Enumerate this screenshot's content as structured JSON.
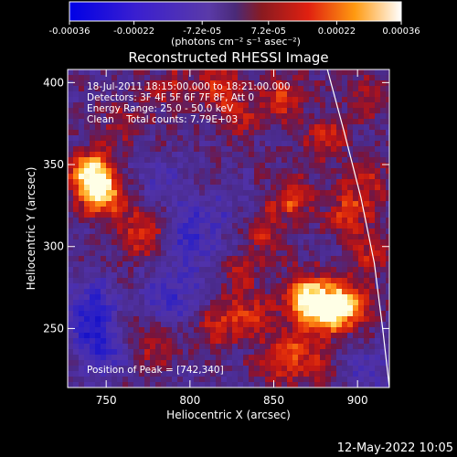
{
  "chart_data": {
    "type": "heatmap",
    "title": "Reconstructed RHESSI Image",
    "xlabel": "Heliocentric X (arcsec)",
    "ylabel": "Heliocentric Y (arcsec)",
    "xlim": [
      727,
      919
    ],
    "ylim": [
      214,
      408
    ],
    "x_ticks": [
      750,
      800,
      850,
      900
    ],
    "y_ticks": [
      250,
      300,
      350,
      400
    ],
    "x_tick_labels": [
      "750",
      "800",
      "850",
      "900"
    ],
    "y_tick_labels": [
      "250",
      "300",
      "350",
      "400"
    ],
    "colorbar": {
      "range": [
        -0.00036,
        0.00036
      ],
      "ticks": [
        -0.00036,
        -0.00022,
        -7.2e-05,
        7.2e-05,
        0.00022,
        0.00036
      ],
      "tick_labels": [
        "-0.00036",
        "-0.00022",
        "-7.2e-05",
        "7.2e-05",
        "0.00022",
        "0.00036"
      ],
      "unit_label": "(photons cm⁻² s⁻¹ asec⁻²)"
    },
    "annotations": [
      "18-Jul-2011 18:15:00.000 to 18:21:00.000",
      "Detectors: 3F 4F 5F 6F 7F 8F, Att 0",
      "Energy Range: 25.0 - 50.0 keV",
      "Clean    Total counts: 7.79E+03"
    ],
    "peak_label": "Position of Peak = [742,340]",
    "peak_position": [
      742,
      340
    ],
    "hot_regions": [
      {
        "x": 742,
        "y": 345,
        "level": 1.0
      },
      {
        "x": 748,
        "y": 330,
        "level": 0.75
      },
      {
        "x": 772,
        "y": 308,
        "level": 0.55
      },
      {
        "x": 758,
        "y": 248,
        "level": 0.5
      },
      {
        "x": 780,
        "y": 238,
        "level": 0.35
      },
      {
        "x": 815,
        "y": 398,
        "level": 0.45
      },
      {
        "x": 830,
        "y": 380,
        "level": 0.35
      },
      {
        "x": 855,
        "y": 390,
        "level": 0.45
      },
      {
        "x": 880,
        "y": 365,
        "level": 0.4
      },
      {
        "x": 862,
        "y": 330,
        "level": 0.5
      },
      {
        "x": 895,
        "y": 320,
        "level": 0.45
      },
      {
        "x": 905,
        "y": 340,
        "level": 0.35
      },
      {
        "x": 870,
        "y": 270,
        "level": 0.85
      },
      {
        "x": 893,
        "y": 265,
        "level": 0.9
      },
      {
        "x": 880,
        "y": 258,
        "level": 0.75
      },
      {
        "x": 860,
        "y": 240,
        "level": 0.4
      },
      {
        "x": 875,
        "y": 228,
        "level": 0.35
      },
      {
        "x": 815,
        "y": 252,
        "level": 0.4
      },
      {
        "x": 835,
        "y": 258,
        "level": 0.4
      },
      {
        "x": 830,
        "y": 285,
        "level": 0.3
      },
      {
        "x": 845,
        "y": 310,
        "level": 0.35
      },
      {
        "x": 808,
        "y": 335,
        "level": 0.25
      },
      {
        "x": 760,
        "y": 375,
        "level": 0.3
      },
      {
        "x": 790,
        "y": 395,
        "level": 0.3
      },
      {
        "x": 850,
        "y": 225,
        "level": 0.3
      },
      {
        "x": 905,
        "y": 390,
        "level": 0.3
      },
      {
        "x": 910,
        "y": 295,
        "level": 0.4
      }
    ],
    "cold_regions": [
      {
        "x": 750,
        "y": 242,
        "level": 1.0
      },
      {
        "x": 742,
        "y": 262,
        "level": 0.75
      },
      {
        "x": 790,
        "y": 268,
        "level": 0.6
      },
      {
        "x": 800,
        "y": 300,
        "level": 0.55
      },
      {
        "x": 812,
        "y": 325,
        "level": 0.5
      },
      {
        "x": 785,
        "y": 340,
        "level": 0.4
      },
      {
        "x": 905,
        "y": 225,
        "level": 0.4
      }
    ],
    "limb_curve": [
      [
        882,
        408
      ],
      [
        892,
        370
      ],
      [
        902,
        330
      ],
      [
        910,
        290
      ],
      [
        915,
        250
      ],
      [
        919,
        214
      ]
    ],
    "colors": {
      "background": "#000000",
      "text": "#ffffff",
      "neutral": "#4a2a8a",
      "limb": "#ffffff"
    }
  },
  "footer": {
    "date": "12-May-2022 10:05"
  }
}
